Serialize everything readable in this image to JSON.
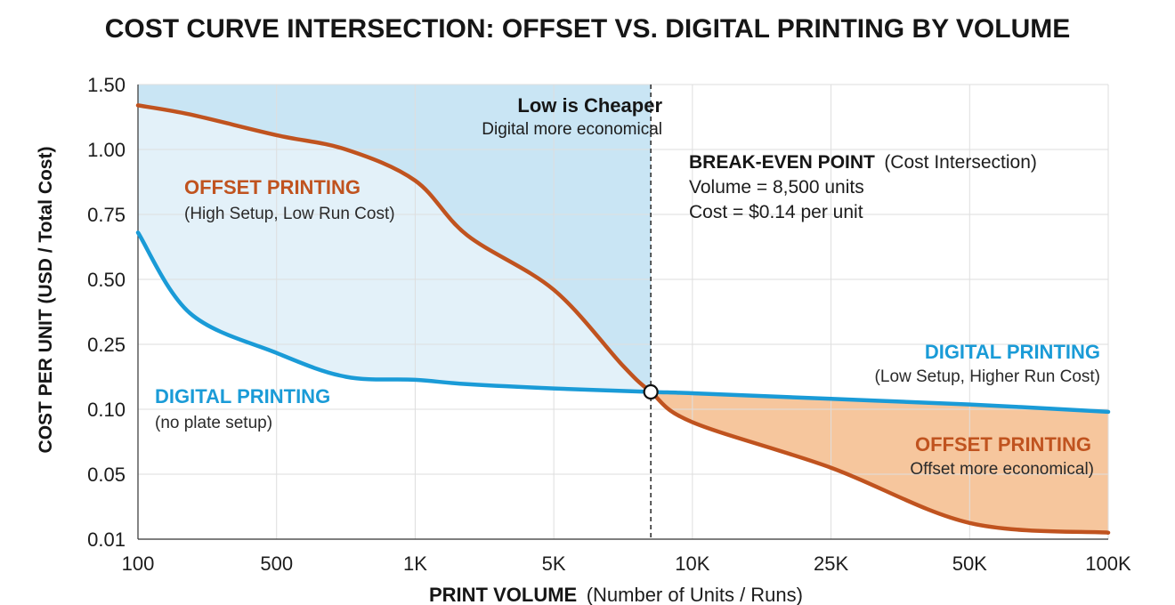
{
  "colors": {
    "offset": "#c0531f",
    "digital": "#1a9bd7",
    "digital_region": "#bfe0f2",
    "offset_region": "#f6c69d",
    "grid": "#dedede"
  },
  "chart_data": {
    "type": "line",
    "title": "COST CURVE INTERSECTION: OFFSET VS. DIGITAL PRINTING BY VOLUME",
    "xlabel_bold": "PRINT VOLUME",
    "xlabel_rest": "(Number of Units / Runs)",
    "ylabel": "COST PER UNIT (USD / Total Cost)",
    "x_ticks": [
      "100",
      "500",
      "1K",
      "5K",
      "10K",
      "25K",
      "50K",
      "100K"
    ],
    "x_tick_values": [
      100,
      500,
      1000,
      5000,
      10000,
      25000,
      50000,
      100000
    ],
    "y_ticks": [
      "0.01",
      "0.05",
      "0.10",
      "0.25",
      "0.50",
      "0.75",
      "1.00",
      "1.50"
    ],
    "y_tick_values": [
      0.01,
      0.05,
      0.1,
      0.25,
      0.5,
      0.75,
      1.0,
      1.5
    ],
    "x_scale": "categorical-ordinal (equally spaced ticks)",
    "y_scale": "categorical-ordinal (equally spaced ticks)",
    "grid": true,
    "series": [
      {
        "name": "OFFSET PRINTING",
        "color": "#c0531f",
        "points": [
          [
            100,
            1.34
          ],
          [
            250,
            1.27
          ],
          [
            500,
            1.11
          ],
          [
            750,
            1.0
          ],
          [
            1000,
            0.88
          ],
          [
            2500,
            0.67
          ],
          [
            5000,
            0.46
          ],
          [
            7500,
            0.2
          ],
          [
            8500,
            0.14
          ],
          [
            10000,
            0.09
          ],
          [
            25000,
            0.055
          ],
          [
            50000,
            0.02
          ],
          [
            100000,
            0.014
          ]
        ]
      },
      {
        "name": "DIGITAL PRINTING",
        "color": "#1a9bd7",
        "points": [
          [
            100,
            0.68
          ],
          [
            250,
            0.37
          ],
          [
            500,
            0.23
          ],
          [
            750,
            0.175
          ],
          [
            1000,
            0.168
          ],
          [
            2500,
            0.158
          ],
          [
            5000,
            0.148
          ],
          [
            8500,
            0.14
          ],
          [
            10000,
            0.137
          ],
          [
            25000,
            0.124
          ],
          [
            50000,
            0.111
          ],
          [
            100000,
            0.098
          ]
        ]
      }
    ],
    "break_even": {
      "volume": 8500,
      "cost": 0.14,
      "label": "BREAK-EVEN POINT",
      "label_suffix": "(Cost Intersection)",
      "line1": "Volume = 8,500 units",
      "line2": "Cost = $0.14 per unit"
    },
    "annotations": {
      "low_cheaper": "Low is Cheaper",
      "digital_economical": "Digital more economical",
      "offset_left_title": "OFFSET PRINTING",
      "offset_left_sub": "(High Setup, Low Run Cost)",
      "digital_left_title": "DIGITAL PRINTING",
      "digital_left_sub": "(no plate setup)",
      "digital_right_title": "DIGITAL PRINTING",
      "digital_right_sub": "(Low Setup, Higher Run Cost)",
      "offset_right_title": "OFFSET PRINTING",
      "offset_right_sub": "Offset more economical)"
    }
  }
}
